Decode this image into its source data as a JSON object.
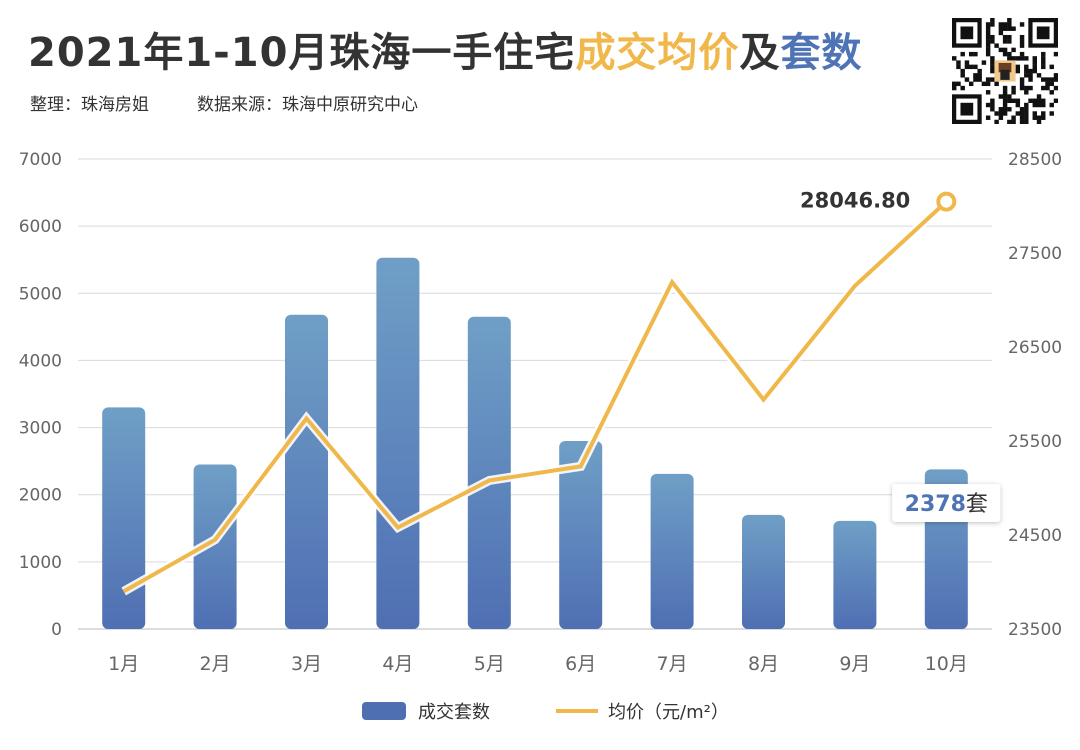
{
  "header": {
    "title_part1": "2021年1-10月珠海一手住宅",
    "title_part2": "成交均价",
    "title_part3": "及",
    "title_part4": "套数",
    "compiler": "整理：珠海房姐",
    "source": "数据来源：珠海中原研究中心",
    "qr_icon": "qr-code-icon"
  },
  "colors": {
    "bar_top": "#6f9fc6",
    "bar_bottom": "#4f6fb3",
    "line": "#f0b84a",
    "title_gold": "#f0b84a",
    "title_blue": "#4f74b5",
    "grid": "#d9d9d9",
    "axis_text": "#666666"
  },
  "chart_data": {
    "type": "bar",
    "categories": [
      "1月",
      "2月",
      "3月",
      "4月",
      "5月",
      "6月",
      "7月",
      "8月",
      "9月",
      "10月"
    ],
    "series": [
      {
        "name": "成交套数",
        "type": "bar",
        "axis": "left",
        "values": [
          3300,
          2450,
          4680,
          5530,
          4650,
          2800,
          2310,
          1700,
          1610,
          2378
        ]
      },
      {
        "name": "均价（元/m²）",
        "type": "line",
        "axis": "right",
        "values": [
          23900,
          24450,
          25740,
          24580,
          25080,
          25230,
          27190,
          25940,
          27150,
          28046.8
        ]
      }
    ],
    "y_left": {
      "min": 0,
      "max": 7000,
      "step": 1000,
      "ticks": [
        "0",
        "1000",
        "2000",
        "3000",
        "4000",
        "5000",
        "6000",
        "7000"
      ]
    },
    "y_right": {
      "min": 23500,
      "max": 28500,
      "step": 1000,
      "ticks": [
        "23500",
        "24500",
        "25500",
        "26500",
        "27500",
        "28500"
      ]
    },
    "annotations": {
      "last_price_label": "28046.80",
      "last_count_number": "2378",
      "last_count_unit": "套"
    },
    "grid": true,
    "legend": {
      "position": "bottom",
      "items": [
        "成交套数",
        "均价（元/m²）"
      ]
    }
  }
}
